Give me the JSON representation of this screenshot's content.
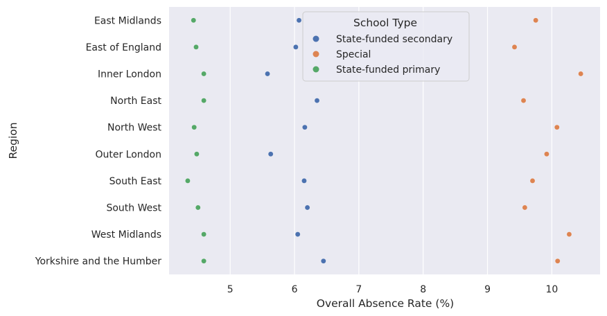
{
  "chart_data": {
    "type": "scatter",
    "title": "",
    "xlabel": "Overall Absence Rate (%)",
    "ylabel": "Region",
    "xlim": [
      4.05,
      10.75
    ],
    "xticks": [
      5,
      6,
      7,
      8,
      9,
      10
    ],
    "grid": true,
    "legend_position": "top-center",
    "legend_title": "School Type",
    "categories": [
      "East Midlands",
      "East of England",
      "Inner London",
      "North East",
      "North West",
      "Outer London",
      "South East",
      "South West",
      "West Midlands",
      "Yorkshire and the Humber"
    ],
    "series": [
      {
        "name": "State-funded secondary",
        "color": "#4c72b0",
        "values": [
          6.07,
          6.02,
          5.58,
          6.35,
          6.16,
          5.63,
          6.15,
          6.2,
          6.05,
          6.45
        ]
      },
      {
        "name": "Special",
        "color": "#dd8452",
        "values": [
          9.75,
          9.42,
          10.45,
          9.56,
          10.08,
          9.92,
          9.7,
          9.58,
          10.27,
          10.09
        ]
      },
      {
        "name": "State-funded primary",
        "color": "#55a868",
        "values": [
          4.43,
          4.47,
          4.59,
          4.59,
          4.44,
          4.48,
          4.34,
          4.5,
          4.59,
          4.59
        ]
      }
    ]
  }
}
